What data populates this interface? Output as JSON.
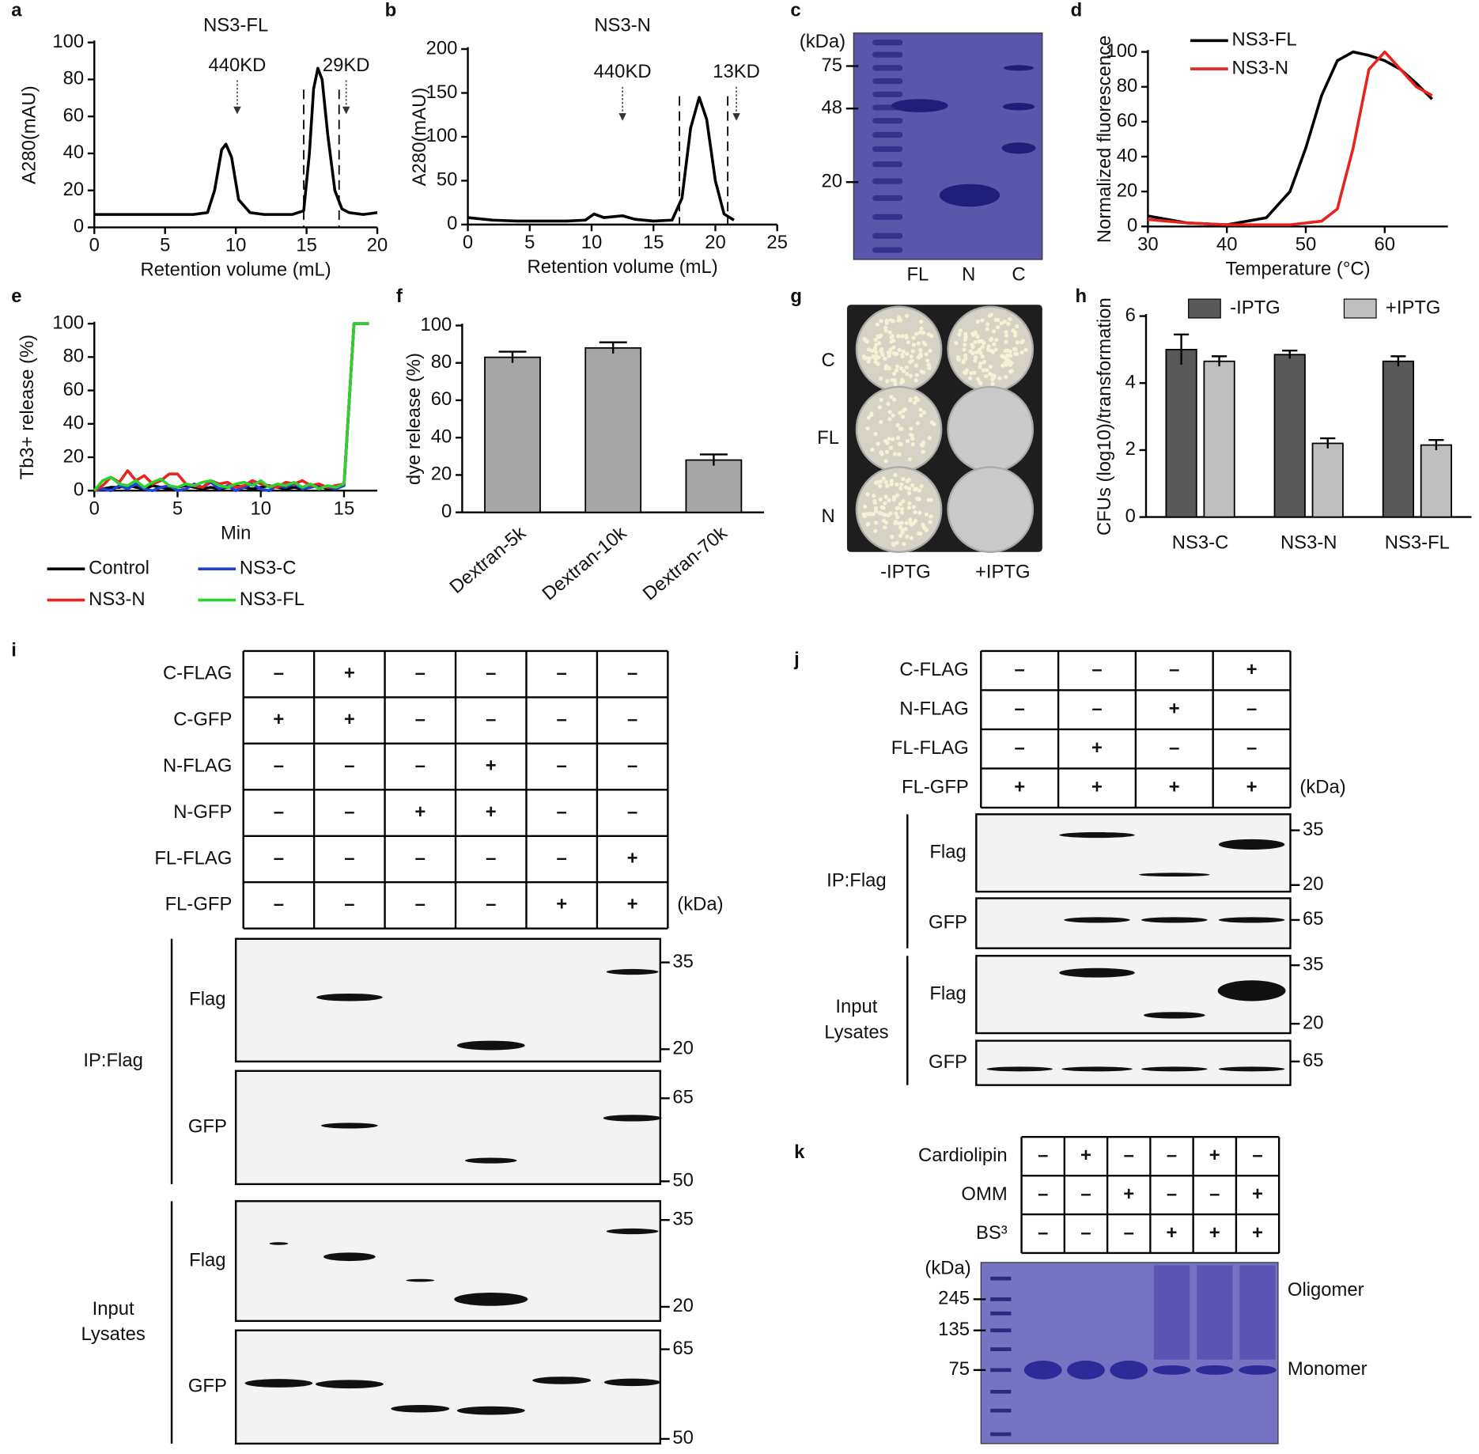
{
  "chart_data": [
    {
      "panel": "a",
      "type": "line",
      "title": "NS3-FL",
      "xlabel": "Retention volume (mL)",
      "ylabel": "A280(mAU)",
      "x": [
        0,
        2,
        4,
        6,
        7,
        8,
        8.5,
        9,
        9.3,
        9.7,
        10.2,
        11,
        12,
        14,
        14.8,
        15.2,
        15.5,
        15.8,
        16.1,
        16.5,
        17,
        17.5,
        18,
        19,
        20
      ],
      "series": [
        {
          "color": "#000000",
          "values": [
            7,
            7,
            7,
            7,
            7,
            8,
            20,
            42,
            45,
            38,
            15,
            8,
            7,
            7,
            9,
            40,
            75,
            86,
            80,
            50,
            20,
            10,
            8,
            7,
            8
          ]
        }
      ],
      "xlim": [
        0,
        20
      ],
      "xticks": [
        0,
        5,
        10,
        15,
        20
      ],
      "ylim": [
        0,
        100
      ],
      "yticks": [
        0,
        20,
        40,
        60,
        80,
        100
      ],
      "annotations": [
        {
          "label": "440KD",
          "x": 10.1
        },
        {
          "label": "29KD",
          "x": 17.8
        }
      ],
      "dashed_x": [
        14.8,
        17.3
      ]
    },
    {
      "panel": "b",
      "type": "line",
      "title": "NS3-N",
      "xlabel": "Retention volume (mL)",
      "ylabel": "A280(mAU)",
      "x": [
        0,
        2,
        4,
        6,
        8,
        9.5,
        10.2,
        11,
        12.5,
        13.5,
        15,
        16.5,
        17.3,
        18,
        18.7,
        19.3,
        20,
        20.7,
        21.5
      ],
      "series": [
        {
          "color": "#000000",
          "values": [
            8,
            5,
            4,
            4,
            4,
            5,
            12,
            8,
            10,
            6,
            4,
            5,
            30,
            110,
            145,
            120,
            50,
            12,
            5
          ]
        }
      ],
      "xlim": [
        0,
        25
      ],
      "xticks": [
        0,
        5,
        10,
        15,
        20,
        25
      ],
      "ylim": [
        0,
        200
      ],
      "yticks": [
        0,
        50,
        100,
        150,
        200
      ],
      "annotations": [
        {
          "label": "440KD",
          "x": 12.5
        },
        {
          "label": "13KD",
          "x": 21.7
        }
      ],
      "dashed_x": [
        17.1,
        21.0
      ]
    },
    {
      "panel": "d",
      "type": "line",
      "xlabel": "Temperature (°C)",
      "ylabel": "Normalized fluorescence",
      "x": [
        30,
        35,
        40,
        45,
        48,
        50,
        52,
        54,
        56,
        58,
        60,
        62,
        64,
        66
      ],
      "series": [
        {
          "name": "NS3-FL",
          "color": "#000000",
          "values": [
            6,
            2,
            1,
            5,
            20,
            45,
            75,
            95,
            100,
            98,
            95,
            90,
            82,
            73
          ]
        },
        {
          "name": "NS3-N",
          "color": "#e8231c",
          "values": [
            4,
            2,
            1,
            1,
            1,
            2,
            3,
            10,
            45,
            90,
            100,
            90,
            80,
            75
          ]
        }
      ],
      "xlim": [
        30,
        68
      ],
      "xticks": [
        30,
        40,
        50,
        60
      ],
      "ylim": [
        0,
        100
      ],
      "yticks": [
        0,
        20,
        40,
        60,
        80,
        100
      ],
      "legend": "top"
    },
    {
      "panel": "e",
      "type": "line",
      "xlabel": "Min",
      "ylabel": "Tb3+ release (%)",
      "x": [
        0,
        0.5,
        1,
        1.5,
        2,
        2.5,
        3,
        3.5,
        4,
        4.5,
        5,
        5.5,
        6,
        6.5,
        7,
        7.5,
        8,
        8.5,
        9,
        9.5,
        10,
        10.5,
        11,
        11.5,
        12,
        12.5,
        13,
        13.5,
        14,
        14.5,
        15,
        15.6,
        16.5
      ],
      "series": [
        {
          "name": "Control",
          "color": "#000000",
          "values": [
            0,
            1,
            2,
            2,
            3,
            2,
            1,
            3,
            2,
            1,
            2,
            3,
            2,
            1,
            2,
            1,
            2,
            3,
            2,
            1,
            2,
            3,
            2,
            1,
            2,
            1,
            2,
            3,
            1,
            2,
            3,
            100,
            100
          ]
        },
        {
          "name": "NS3-C",
          "color": "#1f3fd6",
          "values": [
            0,
            1,
            0,
            3,
            1,
            4,
            1,
            0,
            2,
            3,
            0,
            1,
            4,
            2,
            5,
            1,
            3,
            0,
            2,
            4,
            1,
            0,
            3,
            2,
            4,
            1,
            2,
            3,
            2,
            1,
            3,
            100,
            100
          ]
        },
        {
          "name": "NS3-N",
          "color": "#e8231c",
          "values": [
            0,
            3,
            8,
            5,
            12,
            6,
            9,
            4,
            6,
            10,
            10,
            4,
            3,
            2,
            6,
            4,
            5,
            2,
            3,
            6,
            4,
            3,
            2,
            5,
            4,
            6,
            3,
            4,
            2,
            3,
            4,
            100,
            100
          ]
        },
        {
          "name": "NS3-FL",
          "color": "#2fd12f",
          "values": [
            0,
            6,
            8,
            4,
            3,
            6,
            2,
            5,
            7,
            3,
            2,
            4,
            3,
            5,
            6,
            3,
            2,
            4,
            5,
            3,
            6,
            2,
            4,
            3,
            5,
            2,
            4,
            1,
            3,
            2,
            4,
            100,
            100
          ]
        }
      ],
      "xlim": [
        0,
        17
      ],
      "xticks": [
        0,
        5,
        10,
        15
      ],
      "ylim": [
        0,
        100
      ],
      "yticks": [
        0,
        20,
        40,
        60,
        80,
        100
      ],
      "legend": "below"
    },
    {
      "panel": "f",
      "type": "bar",
      "ylabel": "dye release (%)",
      "categories": [
        "Dextran-5k",
        "Dextran-10k",
        "Dextran-70k"
      ],
      "values": [
        83,
        88,
        28
      ],
      "errors": [
        3,
        3,
        3
      ],
      "color": "#a6a6a6",
      "ylim": [
        0,
        100
      ],
      "yticks": [
        0,
        20,
        40,
        60,
        80,
        100
      ],
      "xtick_rotation": 40
    },
    {
      "panel": "h",
      "type": "bar",
      "ylabel": "CFUs (log10)/transformation",
      "categories": [
        "NS3-C",
        "NS3-N",
        "NS3-FL"
      ],
      "series": [
        {
          "name": "-IPTG",
          "color": "#595959",
          "values": [
            5.0,
            4.85,
            4.65
          ],
          "errors": [
            0.45,
            0.12,
            0.15
          ]
        },
        {
          "name": "+IPTG",
          "color": "#bfbfbf",
          "values": [
            4.65,
            2.2,
            2.15
          ],
          "errors": [
            0.15,
            0.15,
            0.15
          ]
        }
      ],
      "ylim": [
        0,
        6
      ],
      "yticks": [
        0,
        2,
        4,
        6
      ],
      "legend": "top"
    }
  ],
  "panels": {
    "c": {
      "letter": "c",
      "unit": "(kDa)",
      "markers": [
        75,
        48,
        20
      ],
      "lanes": [
        "FL",
        "N",
        "C"
      ]
    },
    "g": {
      "letter": "g",
      "rows": [
        "C",
        "FL",
        "N"
      ],
      "columns": [
        "-IPTG",
        "+IPTG"
      ]
    },
    "i": {
      "letter": "i",
      "unit": "(kDa)",
      "table": {
        "rows": [
          {
            "label": "C-FLAG",
            "cells": [
              "–",
              "+",
              "–",
              "–",
              "–",
              "–"
            ]
          },
          {
            "label": "C-GFP",
            "cells": [
              "+",
              "+",
              "–",
              "–",
              "–",
              "–"
            ]
          },
          {
            "label": "N-FLAG",
            "cells": [
              "–",
              "–",
              "–",
              "+",
              "–",
              "–"
            ]
          },
          {
            "label": "N-GFP",
            "cells": [
              "–",
              "–",
              "+",
              "+",
              "–",
              "–"
            ]
          },
          {
            "label": "FL-FLAG",
            "cells": [
              "–",
              "–",
              "–",
              "–",
              "–",
              "+"
            ]
          },
          {
            "label": "FL-GFP",
            "cells": [
              "–",
              "–",
              "–",
              "–",
              "+",
              "+"
            ]
          }
        ]
      },
      "groups": [
        {
          "label": [
            "IP:Flag"
          ],
          "blots": [
            {
              "label": "Flag",
              "markers": [
                35,
                20
              ]
            },
            {
              "label": "GFP",
              "markers": [
                65,
                50
              ]
            }
          ]
        },
        {
          "label": [
            "Input",
            "Lysates"
          ],
          "blots": [
            {
              "label": "Flag",
              "markers": [
                35,
                20
              ]
            },
            {
              "label": "GFP",
              "markers": [
                65,
                50
              ]
            }
          ]
        }
      ]
    },
    "j": {
      "letter": "j",
      "unit": "(kDa)",
      "table": {
        "rows": [
          {
            "label": "C-FLAG",
            "cells": [
              "–",
              "–",
              "–",
              "+"
            ]
          },
          {
            "label": "N-FLAG",
            "cells": [
              "–",
              "–",
              "+",
              "–"
            ]
          },
          {
            "label": "FL-FLAG",
            "cells": [
              "–",
              "+",
              "–",
              "–"
            ]
          },
          {
            "label": "FL-GFP",
            "cells": [
              "+",
              "+",
              "+",
              "+"
            ]
          }
        ]
      },
      "groups": [
        {
          "label": [
            "IP:Flag"
          ],
          "blots": [
            {
              "label": "Flag",
              "markers": [
                35,
                20
              ]
            },
            {
              "label": "GFP",
              "markers": [
                65
              ]
            }
          ]
        },
        {
          "label": [
            "Input",
            "Lysates"
          ],
          "blots": [
            {
              "label": "Flag",
              "markers": [
                35,
                20
              ]
            },
            {
              "label": "GFP",
              "markers": [
                65
              ]
            }
          ]
        }
      ]
    },
    "k": {
      "letter": "k",
      "unit": "(kDa)",
      "markers": [
        245,
        135,
        75
      ],
      "bands": [
        "Oligomer",
        "Monomer"
      ],
      "table": {
        "rows": [
          {
            "label": "Cardiolipin",
            "cells": [
              "–",
              "+",
              "–",
              "–",
              "+",
              "–"
            ]
          },
          {
            "label": "OMM",
            "cells": [
              "–",
              "–",
              "+",
              "–",
              "–",
              "+"
            ]
          },
          {
            "label": "BS³",
            "cells": [
              "–",
              "–",
              "–",
              "+",
              "+",
              "+"
            ]
          }
        ]
      }
    }
  }
}
